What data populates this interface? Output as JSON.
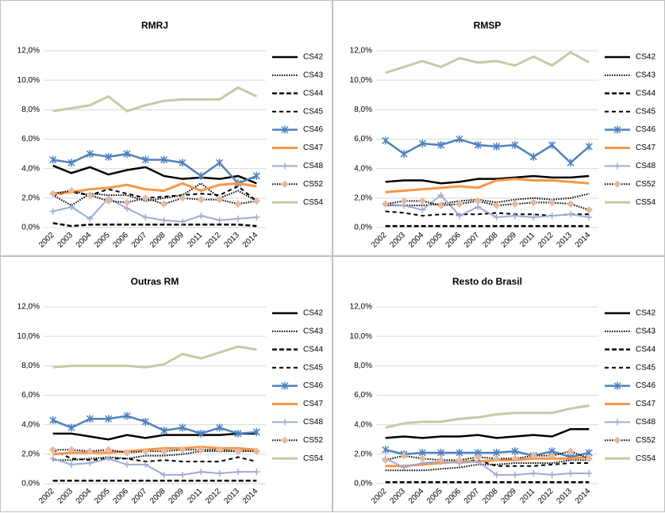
{
  "chart_data": [
    {
      "type": "line",
      "title": "RMRJ",
      "categories": [
        "2002",
        "2003",
        "2004",
        "2005",
        "2006",
        "2007",
        "2008",
        "2009",
        "2011",
        "2012",
        "2013",
        "2014"
      ],
      "ylim": [
        0,
        12
      ],
      "yticks": [
        {
          "value": 0,
          "label": "0,0%"
        },
        {
          "value": 2,
          "label": "2,0%"
        },
        {
          "value": 4,
          "label": "4,0%"
        },
        {
          "value": 6,
          "label": "6,0%"
        },
        {
          "value": 8,
          "label": "8,0%"
        },
        {
          "value": 10,
          "label": "10,0%"
        },
        {
          "value": 12,
          "label": "12,0%"
        }
      ],
      "grid": true,
      "series": [
        {
          "name": "CS42",
          "color": "#000000",
          "values": [
            4.2,
            3.7,
            4.1,
            3.6,
            3.9,
            4.1,
            3.5,
            3.3,
            3.4,
            3.3,
            3.5,
            3.0
          ]
        },
        {
          "name": "CS43",
          "color": "#000000",
          "values": [
            2.2,
            1.5,
            2.3,
            2.2,
            2.2,
            1.8,
            2.0,
            2.2,
            3.0,
            2.0,
            2.5,
            1.8
          ]
        },
        {
          "name": "CS44",
          "color": "#000000",
          "values": [
            0.3,
            0.1,
            0.2,
            0.2,
            0.2,
            0.2,
            0.2,
            0.2,
            0.2,
            0.2,
            0.2,
            0.1
          ]
        },
        {
          "name": "CS45",
          "color": "#000000",
          "values": [
            2.2,
            2.4,
            2.2,
            2.6,
            2.3,
            2.0,
            2.1,
            2.2,
            2.3,
            2.2,
            2.8,
            1.8
          ]
        },
        {
          "name": "CS46",
          "color": "#4f81bd",
          "values": [
            4.6,
            4.4,
            5.0,
            4.8,
            5.0,
            4.6,
            4.6,
            4.4,
            3.5,
            4.4,
            3.0,
            3.5
          ]
        },
        {
          "name": "CS47",
          "color": "#f79646",
          "values": [
            2.3,
            2.4,
            2.6,
            2.7,
            2.9,
            2.6,
            2.5,
            3.0,
            2.5,
            2.9,
            3.0,
            2.8
          ]
        },
        {
          "name": "CS48",
          "color": "#9fabd2",
          "values": [
            1.1,
            1.4,
            0.6,
            2.0,
            1.3,
            0.7,
            0.5,
            0.4,
            0.8,
            0.5,
            0.6,
            0.7
          ]
        },
        {
          "name": "CS52",
          "color": "#000000",
          "values": [
            2.3,
            2.5,
            2.2,
            1.8,
            1.7,
            2.0,
            1.6,
            2.0,
            1.9,
            1.9,
            1.6,
            1.8
          ]
        },
        {
          "name": "CS54",
          "color": "#c4cba5",
          "values": [
            7.9,
            8.1,
            8.3,
            8.9,
            7.9,
            8.3,
            8.6,
            8.7,
            8.7,
            8.7,
            9.5,
            8.9
          ]
        }
      ]
    },
    {
      "type": "line",
      "title": "RMSP",
      "categories": [
        "2002",
        "2003",
        "2004",
        "2005",
        "2006",
        "2007",
        "2008",
        "2009",
        "2011",
        "2012",
        "2013",
        "2014"
      ],
      "ylim": [
        0,
        12
      ],
      "yticks": [
        {
          "value": 0,
          "label": "0,0%"
        },
        {
          "value": 2,
          "label": "2,0%"
        },
        {
          "value": 4,
          "label": "4,0%"
        },
        {
          "value": 6,
          "label": "6,0%"
        },
        {
          "value": 8,
          "label": "8,0%"
        },
        {
          "value": 10,
          "label": "10,0%"
        },
        {
          "value": 12,
          "label": "12,0%"
        }
      ],
      "grid": true,
      "series": [
        {
          "name": "CS42",
          "color": "#000000",
          "values": [
            3.1,
            3.2,
            3.2,
            3.0,
            3.1,
            3.3,
            3.3,
            3.4,
            3.5,
            3.4,
            3.4,
            3.5
          ]
        },
        {
          "name": "CS43",
          "color": "#000000",
          "values": [
            1.5,
            1.5,
            1.5,
            1.6,
            1.8,
            1.9,
            1.7,
            1.9,
            2.0,
            1.9,
            2.0,
            2.3
          ]
        },
        {
          "name": "CS44",
          "color": "#000000",
          "values": [
            0.1,
            0.1,
            0.1,
            0.1,
            0.1,
            0.1,
            0.1,
            0.1,
            0.1,
            0.1,
            0.1,
            0.1
          ]
        },
        {
          "name": "CS45",
          "color": "#000000",
          "values": [
            1.1,
            1.0,
            0.8,
            0.9,
            0.9,
            0.9,
            1.0,
            0.9,
            0.9,
            0.8,
            0.9,
            0.9
          ]
        },
        {
          "name": "CS46",
          "color": "#4f81bd",
          "values": [
            5.9,
            5.0,
            5.7,
            5.6,
            6.0,
            5.6,
            5.5,
            5.6,
            4.8,
            5.6,
            4.4,
            5.5
          ]
        },
        {
          "name": "CS47",
          "color": "#f79646",
          "values": [
            2.4,
            2.5,
            2.6,
            2.7,
            2.8,
            2.7,
            3.2,
            3.3,
            3.2,
            3.2,
            3.1,
            3.0
          ]
        },
        {
          "name": "CS48",
          "color": "#9fabd2",
          "values": [
            1.6,
            1.5,
            1.2,
            2.2,
            0.8,
            1.4,
            0.7,
            0.8,
            0.7,
            0.8,
            0.9,
            0.7
          ]
        },
        {
          "name": "CS52",
          "color": "#000000",
          "values": [
            1.6,
            1.8,
            1.8,
            1.5,
            1.6,
            1.8,
            1.5,
            1.6,
            1.7,
            1.7,
            1.6,
            1.2
          ]
        },
        {
          "name": "CS54",
          "color": "#c4cba5",
          "values": [
            10.5,
            10.9,
            11.3,
            10.9,
            11.5,
            11.2,
            11.3,
            11.0,
            11.6,
            11.0,
            11.9,
            11.2
          ]
        }
      ]
    },
    {
      "type": "line",
      "title": "Outras RM",
      "categories": [
        "2002",
        "2003",
        "2004",
        "2005",
        "2006",
        "2007",
        "2008",
        "2009",
        "2011",
        "2012",
        "2013",
        "2014"
      ],
      "ylim": [
        0,
        12
      ],
      "yticks": [
        {
          "value": 0,
          "label": "0,0%"
        },
        {
          "value": 2,
          "label": "2,0%"
        },
        {
          "value": 4,
          "label": "4,0%"
        },
        {
          "value": 6,
          "label": "6,0%"
        },
        {
          "value": 8,
          "label": "8,0%"
        },
        {
          "value": 10,
          "label": "10,0%"
        },
        {
          "value": 12,
          "label": "12,0%"
        }
      ],
      "grid": true,
      "series": [
        {
          "name": "CS42",
          "color": "#000000",
          "values": [
            3.4,
            3.4,
            3.2,
            3.0,
            3.3,
            3.1,
            3.3,
            3.3,
            3.3,
            3.3,
            3.4,
            3.4
          ]
        },
        {
          "name": "CS43",
          "color": "#000000",
          "values": [
            1.6,
            1.6,
            1.7,
            1.8,
            1.7,
            1.9,
            1.9,
            2.0,
            2.2,
            2.2,
            2.2,
            2.3
          ]
        },
        {
          "name": "CS44",
          "color": "#000000",
          "values": [
            0.2,
            0.2,
            0.2,
            0.2,
            0.2,
            0.2,
            0.2,
            0.2,
            0.2,
            0.2,
            0.2,
            0.2
          ]
        },
        {
          "name": "CS45",
          "color": "#000000",
          "values": [
            2.3,
            1.7,
            1.6,
            1.7,
            1.7,
            1.5,
            1.6,
            1.5,
            1.5,
            1.5,
            1.8,
            1.5
          ]
        },
        {
          "name": "CS46",
          "color": "#4f81bd",
          "values": [
            4.3,
            3.8,
            4.4,
            4.4,
            4.6,
            4.2,
            3.6,
            3.8,
            3.4,
            3.8,
            3.4,
            3.5
          ]
        },
        {
          "name": "CS47",
          "color": "#f79646",
          "values": [
            2.0,
            2.1,
            2.1,
            2.1,
            2.2,
            2.3,
            2.4,
            2.4,
            2.5,
            2.4,
            2.4,
            2.3
          ]
        },
        {
          "name": "CS48",
          "color": "#9fabd2",
          "values": [
            1.7,
            1.3,
            1.4,
            1.7,
            1.3,
            1.3,
            0.6,
            0.6,
            0.8,
            0.7,
            0.8,
            0.8
          ]
        },
        {
          "name": "CS52",
          "color": "#000000",
          "values": [
            2.3,
            2.3,
            2.2,
            2.3,
            2.1,
            2.2,
            2.2,
            2.3,
            2.3,
            2.3,
            2.2,
            2.2
          ]
        },
        {
          "name": "CS54",
          "color": "#c4cba5",
          "values": [
            7.9,
            8.0,
            8.0,
            8.0,
            8.0,
            7.9,
            8.1,
            8.8,
            8.5,
            8.9,
            9.3,
            9.1
          ]
        }
      ]
    },
    {
      "type": "line",
      "title": "Resto do Brasil",
      "categories": [
        "2002",
        "2003",
        "2004",
        "2005",
        "2006",
        "2007",
        "2008",
        "2009",
        "2011",
        "2012",
        "2013",
        "2014"
      ],
      "ylim": [
        0,
        12
      ],
      "yticks": [
        {
          "value": 0,
          "label": "0,0%"
        },
        {
          "value": 2,
          "label": "2,0%"
        },
        {
          "value": 4,
          "label": "4,0%"
        },
        {
          "value": 6,
          "label": "6,0%"
        },
        {
          "value": 8,
          "label": "8,0%"
        },
        {
          "value": 10,
          "label": "10,0%"
        },
        {
          "value": 12,
          "label": "12,0%"
        }
      ],
      "grid": true,
      "series": [
        {
          "name": "CS42",
          "color": "#000000",
          "values": [
            3.1,
            3.2,
            3.1,
            3.2,
            3.2,
            3.3,
            3.1,
            3.2,
            3.3,
            3.2,
            3.7,
            3.7
          ]
        },
        {
          "name": "CS43",
          "color": "#000000",
          "values": [
            0.9,
            0.9,
            0.9,
            1.0,
            1.1,
            1.3,
            1.3,
            1.4,
            1.4,
            1.4,
            1.6,
            1.6
          ]
        },
        {
          "name": "CS44",
          "color": "#000000",
          "values": [
            0.1,
            0.1,
            0.1,
            0.1,
            0.1,
            0.1,
            0.1,
            0.1,
            0.1,
            0.1,
            0.1,
            0.1
          ]
        },
        {
          "name": "CS45",
          "color": "#000000",
          "values": [
            1.2,
            1.2,
            1.3,
            1.4,
            1.5,
            1.6,
            1.2,
            1.2,
            1.2,
            1.3,
            1.4,
            1.4
          ]
        },
        {
          "name": "CS46",
          "color": "#4f81bd",
          "values": [
            2.3,
            2.0,
            2.1,
            2.1,
            2.1,
            2.1,
            2.1,
            2.2,
            1.9,
            2.2,
            1.8,
            2.1
          ]
        },
        {
          "name": "CS47",
          "color": "#f79646",
          "values": [
            1.2,
            1.2,
            1.3,
            1.4,
            1.5,
            1.5,
            1.6,
            1.6,
            1.7,
            1.7,
            1.7,
            1.8
          ]
        },
        {
          "name": "CS48",
          "color": "#9fabd2",
          "values": [
            1.7,
            1.1,
            1.4,
            1.5,
            1.4,
            1.5,
            0.6,
            0.6,
            0.7,
            0.6,
            0.7,
            0.7
          ]
        },
        {
          "name": "CS52",
          "color": "#000000",
          "values": [
            1.6,
            1.9,
            1.7,
            1.6,
            1.6,
            1.8,
            1.7,
            1.7,
            1.9,
            1.9,
            2.2,
            1.7
          ]
        },
        {
          "name": "CS54",
          "color": "#c4cba5",
          "values": [
            3.8,
            4.1,
            4.2,
            4.2,
            4.4,
            4.5,
            4.7,
            4.8,
            4.8,
            4.8,
            5.1,
            5.3
          ]
        }
      ]
    }
  ]
}
